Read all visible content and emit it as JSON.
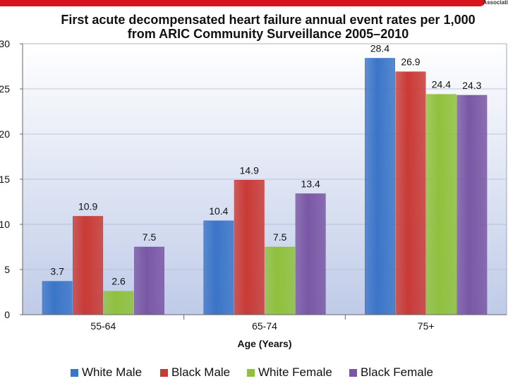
{
  "header": {
    "logo_text": "Associati"
  },
  "chart_data": {
    "type": "bar",
    "title_line1": "First acute decompensated heart failure annual event rates per 1,000",
    "title_line2": "from ARIC Community Surveillance 2005–2010",
    "categories": [
      "55-64",
      "65-74",
      "75+"
    ],
    "series": [
      {
        "name": "White Male",
        "color": "#3b75c8",
        "values": [
          3.7,
          10.4,
          28.4
        ]
      },
      {
        "name": "Black Male",
        "color": "#c93a36",
        "values": [
          10.9,
          14.9,
          26.9
        ]
      },
      {
        "name": "White Female",
        "color": "#8fc13c",
        "values": [
          2.6,
          7.5,
          24.4
        ]
      },
      {
        "name": "Black Female",
        "color": "#7a57a5",
        "values": [
          7.5,
          13.4,
          24.3
        ]
      }
    ],
    "value_labels": [
      [
        "3.7",
        "10.4",
        "28.4"
      ],
      [
        "10.9",
        "14.9",
        "26.9"
      ],
      [
        "2.6",
        "7.5",
        "24.4"
      ],
      [
        "7.5",
        "13.4",
        "24.3"
      ]
    ],
    "xlabel": "Age (Years)",
    "ylabel": "",
    "ylim": [
      0,
      30
    ],
    "yticks": [
      "0",
      "5",
      "10",
      "15",
      "20",
      "25",
      "30"
    ],
    "legend_position": "bottom"
  }
}
